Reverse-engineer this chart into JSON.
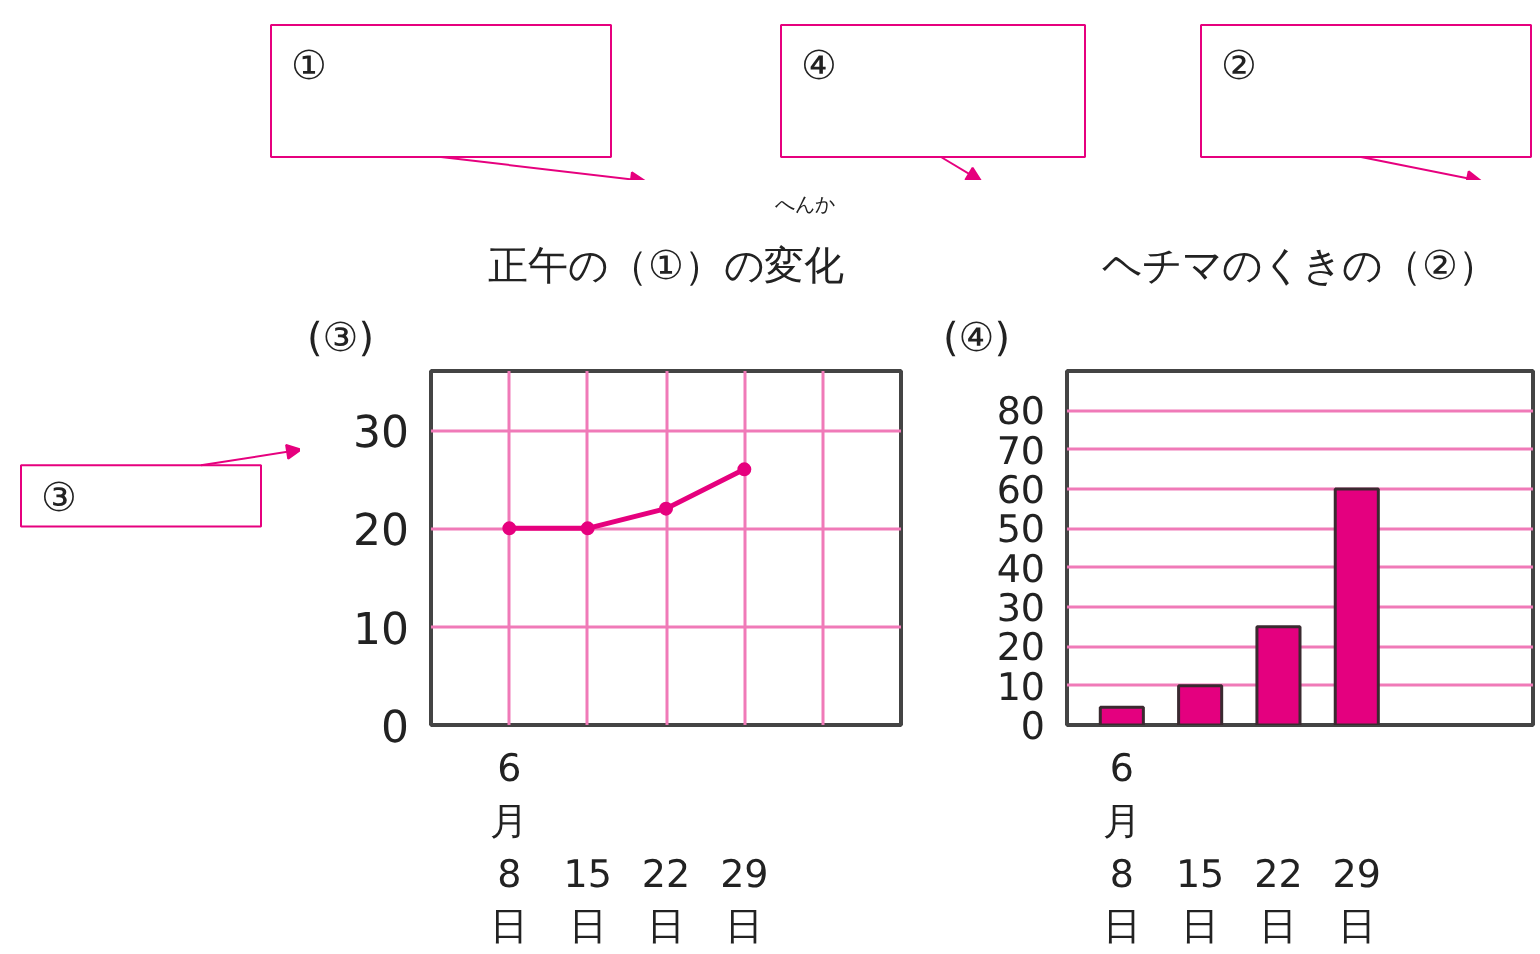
{
  "chart_data": [
    {
      "type": "line",
      "title": "正午の（①）の変化",
      "subtitle": "へんか",
      "ylabel": "(③)",
      "categories": [
        "6月8日",
        "15日",
        "22日",
        "29日",
        null
      ],
      "series": [
        {
          "color": "#e6007e",
          "values": [
            20,
            20,
            22,
            26,
            null
          ]
        }
      ],
      "ylim": [
        0,
        36
      ],
      "yticks": [
        0,
        10,
        20,
        30
      ],
      "grid": true,
      "marker": "circle",
      "line_style": "solid",
      "annotations": [
        "①",
        "③"
      ]
    },
    {
      "type": "bar",
      "title": "ヘチマのくきの（②）",
      "ylabel": "(④)",
      "categories": [
        "6月8日",
        "15日",
        "22日",
        "29日",
        null
      ],
      "values": [
        4.5,
        10,
        25,
        60,
        null
      ],
      "color": "#e4007f",
      "ylim": [
        0,
        90
      ],
      "yticks": [
        0,
        10,
        20,
        30,
        40,
        50,
        60,
        70,
        80
      ],
      "grid": "y",
      "annotations": [
        "④",
        "②"
      ]
    }
  ]
}
